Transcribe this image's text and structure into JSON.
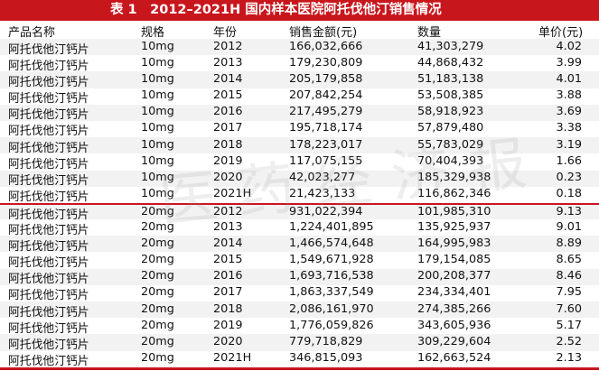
{
  "table": {
    "title": "表 1　2012–2021H 国内样本医院阿托伐他汀销售情况",
    "headers": [
      "产品名称",
      "规格",
      "年份",
      "销售金额(元)",
      "数量",
      "单价(元)"
    ],
    "rows": [
      [
        "阿托伐他汀钙片",
        "10mg",
        "2012",
        "166,032,666",
        "41,303,279",
        "4.02"
      ],
      [
        "阿托伐他汀钙片",
        "10mg",
        "2013",
        "179,230,809",
        "44,868,432",
        "3.99"
      ],
      [
        "阿托伐他汀钙片",
        "10mg",
        "2014",
        "205,179,858",
        "51,183,138",
        "4.01"
      ],
      [
        "阿托伐他汀钙片",
        "10mg",
        "2015",
        "207,842,254",
        "53,508,385",
        "3.88"
      ],
      [
        "阿托伐他汀钙片",
        "10mg",
        "2016",
        "217,495,279",
        "58,918,923",
        "3.69"
      ],
      [
        "阿托伐他汀钙片",
        "10mg",
        "2017",
        "195,718,174",
        "57,879,480",
        "3.38"
      ],
      [
        "阿托伐他汀钙片",
        "10mg",
        "2018",
        "178,223,017",
        "55,783,029",
        "3.19"
      ],
      [
        "阿托伐他汀钙片",
        "10mg",
        "2019",
        "117,075,155",
        "70,404,393",
        "1.66"
      ],
      [
        "阿托伐他汀钙片",
        "10mg",
        "2020",
        "42,023,277",
        "185,329,938",
        "0.23"
      ],
      [
        "阿托伐他汀钙片",
        "10mg",
        "2021H",
        "21,423,133",
        "116,862,346",
        "0.18"
      ],
      [
        "阿托伐他汀钙片",
        "20mg",
        "2012",
        "931,022,394",
        "101,985,310",
        "9.13"
      ],
      [
        "阿托伐他汀钙片",
        "20mg",
        "2013",
        "1,224,401,895",
        "135,925,937",
        "9.01"
      ],
      [
        "阿托伐他汀钙片",
        "20mg",
        "2014",
        "1,466,574,648",
        "164,995,983",
        "8.89"
      ],
      [
        "阿托伐他汀钙片",
        "20mg",
        "2015",
        "1,549,671,928",
        "179,154,085",
        "8.65"
      ],
      [
        "阿托伐他汀钙片",
        "20mg",
        "2016",
        "1,693,716,538",
        "200,208,377",
        "8.46"
      ],
      [
        "阿托伐他汀钙片",
        "20mg",
        "2017",
        "1,863,337,549",
        "234,334,401",
        "7.95"
      ],
      [
        "阿托伐他汀钙片",
        "20mg",
        "2018",
        "2,086,161,970",
        "274,385,266",
        "7.60"
      ],
      [
        "阿托伐他汀钙片",
        "20mg",
        "2019",
        "1,776,059,826",
        "343,605,936",
        "5.17"
      ],
      [
        "阿托伐他汀钙片",
        "20mg",
        "2020",
        "779,718,829",
        "309,229,604",
        "2.52"
      ],
      [
        "阿托伐他汀钙片",
        "20mg",
        "2021H",
        "346,815,093",
        "162,663,524",
        "2.13"
      ]
    ]
  },
  "watermark": "医药经济报"
}
